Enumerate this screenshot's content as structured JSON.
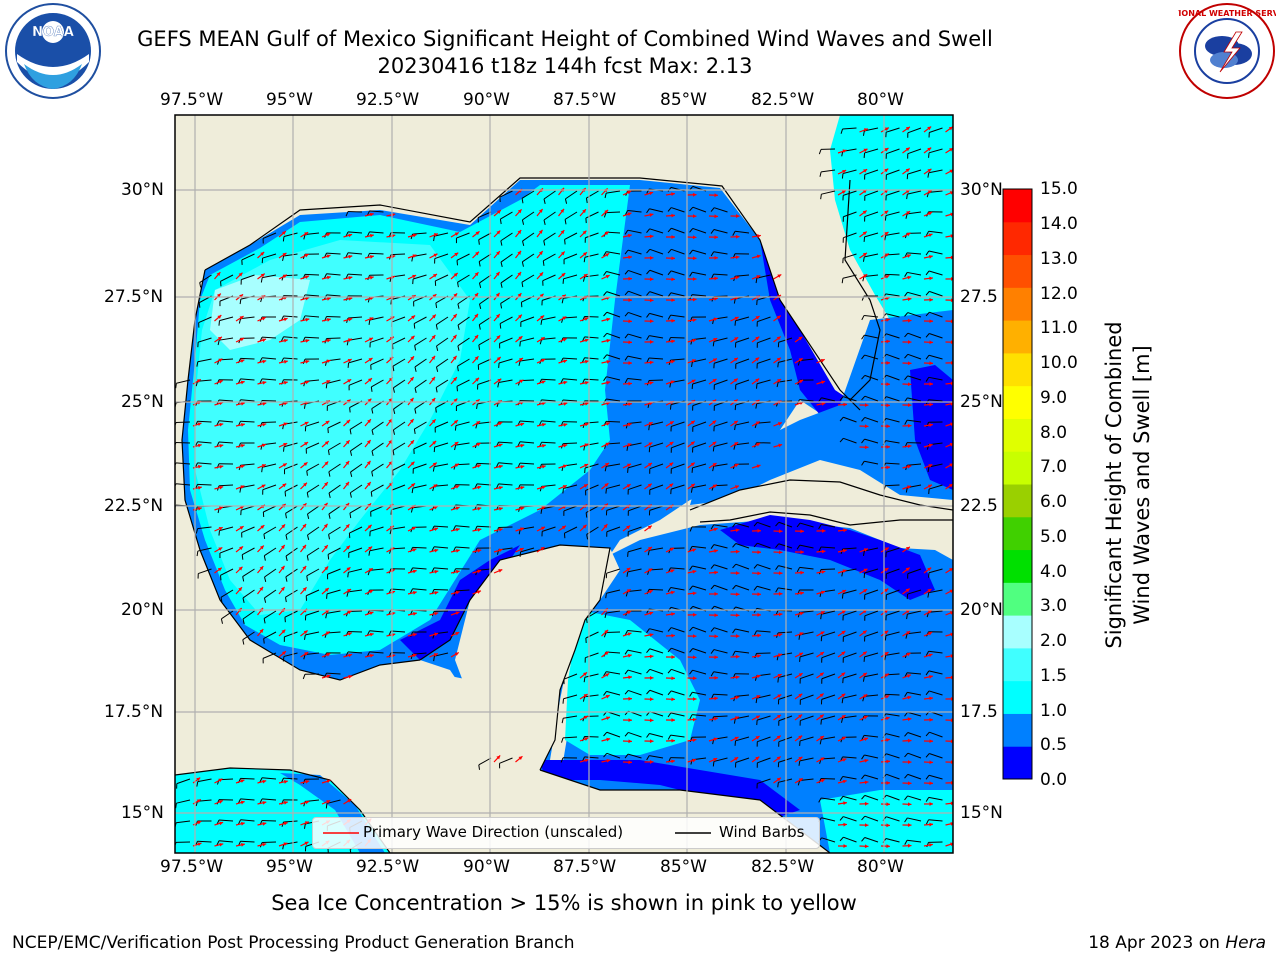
{
  "header": {
    "title_line1": "GEFS MEAN Gulf of Mexico Significant Height of Combined Wind Waves and Swell",
    "title_line2": "20230416 t18z 144h fcst   Max: 2.13"
  },
  "logos": {
    "noaa_text": "NOAA",
    "nws_text": "NATIONAL WEATHER SERVICE"
  },
  "map": {
    "lon_ticks": [
      "97.5°W",
      "95°W",
      "92.5°W",
      "90°W",
      "87.5°W",
      "85°W",
      "82.5°W",
      "80°W"
    ],
    "lat_ticks_left": [
      "30°N",
      "27.5°N",
      "25°N",
      "22.5°N",
      "20°N",
      "17.5°N",
      "15°N"
    ],
    "lat_ticks_right": [
      "30°N",
      "27.5",
      "25°N",
      "22.5",
      "20°N",
      "17.5",
      "15°N"
    ],
    "colors": {
      "land": "#efedda",
      "ocean_frame": "#0080ff",
      "coast": "#000000",
      "grid": "#b0b0b0",
      "wave_arrow": "#ff0000",
      "wind_barb": "#000000"
    }
  },
  "legend": {
    "wave_label": "Primary Wave Direction (unscaled)",
    "barb_label": "Wind Barbs"
  },
  "colorbar": {
    "label_line1": "Significant Height of Combined",
    "label_line2": "Wind Waves and Swell [m]",
    "ticks": [
      "15.0",
      "14.0",
      "13.0",
      "12.0",
      "11.0",
      "10.0",
      "9.0",
      "8.0",
      "7.0",
      "6.0",
      "5.0",
      "4.0",
      "3.0",
      "2.0",
      "1.5",
      "1.0",
      "0.5",
      "0.0"
    ],
    "colors": [
      "#0000ff",
      "#0080ff",
      "#00ffff",
      "#40ffff",
      "#a8ffff",
      "#50ff80",
      "#00e000",
      "#40d000",
      "#9ad000",
      "#c8ff00",
      "#e0ff00",
      "#ffff00",
      "#ffe000",
      "#ffb000",
      "#ff8000",
      "#ff5000",
      "#ff2800",
      "#ff0000"
    ]
  },
  "footer": {
    "note": "Sea Ice Concentration > 15% is shown in pink to yellow",
    "credit": "NCEP/EMC/Verification Post Processing Product Generation Branch",
    "date": "18 Apr 2023 on",
    "machine": "Hera"
  }
}
